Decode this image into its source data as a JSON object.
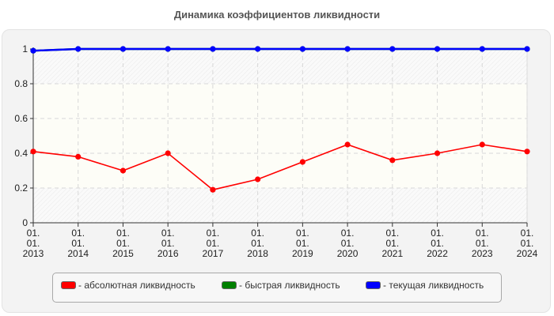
{
  "title": "Динамика коэффициентов ликвидности",
  "legend": [
    {
      "label": "- абсолютная ликвидность",
      "color": "#ff0000"
    },
    {
      "label": "- быстрая ликвидность",
      "color": "#008000"
    },
    {
      "label": "- текущая ликвидность",
      "color": "#0000ff"
    }
  ],
  "chart_data": {
    "type": "line",
    "title": "Динамика коэффициентов ликвидности",
    "xlabel": "",
    "ylabel": "",
    "ylim": [
      0,
      1
    ],
    "yticks": [
      "0",
      "0.2",
      "0.4",
      "0.6",
      "0.8",
      "1"
    ],
    "grid": true,
    "legend_position": "bottom",
    "categories": [
      "01.01.2013",
      "01.01.2014",
      "01.01.2015",
      "01.01.2016",
      "01.01.2017",
      "01.01.2018",
      "01.01.2019",
      "01.01.2020",
      "01.01.2021",
      "01.01.2022",
      "01.01.2023",
      "01.01.2024"
    ],
    "x_tick_lines": [
      [
        "01.",
        "01.",
        "2013"
      ],
      [
        "01.",
        "01.",
        "2014"
      ],
      [
        "01.",
        "01.",
        "2015"
      ],
      [
        "01.",
        "01.",
        "2016"
      ],
      [
        "01.",
        "01.",
        "2017"
      ],
      [
        "01.",
        "01.",
        "2018"
      ],
      [
        "01.",
        "01.",
        "2019"
      ],
      [
        "01.",
        "01.",
        "2020"
      ],
      [
        "01.",
        "01.",
        "2021"
      ],
      [
        "01.",
        "01.",
        "2022"
      ],
      [
        "01.",
        "01.",
        "2023"
      ],
      [
        "01.",
        "01.",
        "2024"
      ]
    ],
    "series": [
      {
        "name": "абсолютная ликвидность",
        "color": "#ff0000",
        "values": [
          0.41,
          0.38,
          0.3,
          0.4,
          0.19,
          0.25,
          0.35,
          0.45,
          0.36,
          0.4,
          0.45,
          0.41
        ]
      },
      {
        "name": "быстрая ликвидность",
        "color": "#008000",
        "values": [
          0.99,
          1,
          1,
          1,
          1,
          1,
          1,
          1,
          1,
          1,
          1,
          1
        ]
      },
      {
        "name": "текущая ликвидность",
        "color": "#0000ff",
        "values": [
          0.99,
          1,
          1,
          1,
          1,
          1,
          1,
          1,
          1,
          1,
          1,
          1
        ]
      }
    ]
  }
}
